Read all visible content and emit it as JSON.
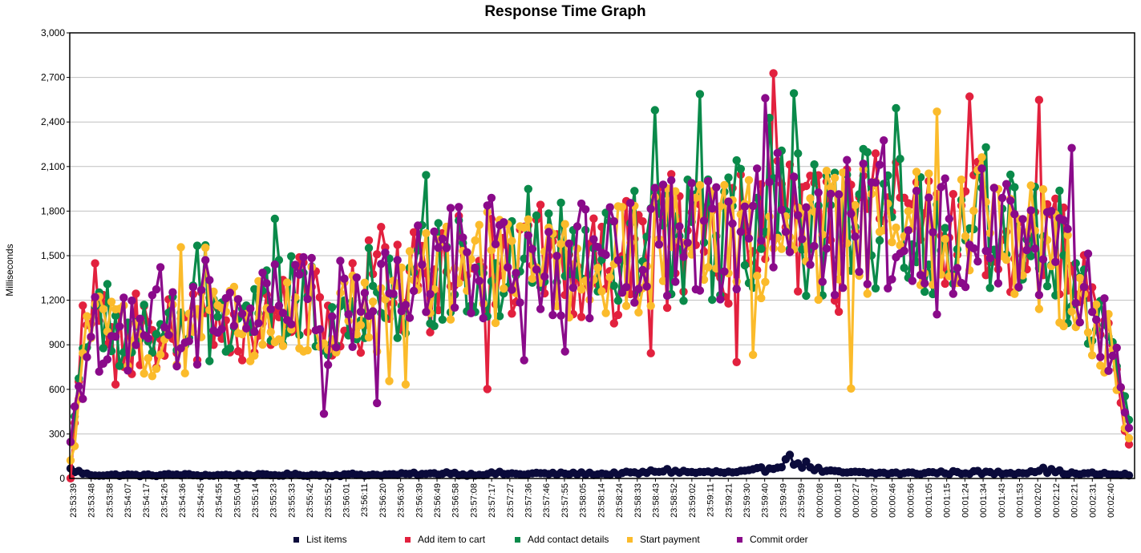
{
  "chart_data": {
    "type": "line",
    "title": "Response Time Graph",
    "xlabel": "",
    "ylabel": "Milliseconds",
    "ylim": [
      0,
      3000
    ],
    "yticks": [
      0,
      300,
      600,
      900,
      1200,
      1500,
      1800,
      2100,
      2400,
      2700,
      3000
    ],
    "ytick_labels": [
      "0",
      "300",
      "600",
      "900",
      "1,200",
      "1,500",
      "1,800",
      "2,100",
      "2,400",
      "2,700",
      "3,000"
    ],
    "xtick_labels": [
      "23:53:39",
      "23:53:48",
      "23:53:58",
      "23:54:07",
      "23:54:17",
      "23:54:26",
      "23:54:36",
      "23:54:45",
      "23:54:55",
      "23:55:04",
      "23:55:14",
      "23:55:23",
      "23:55:33",
      "23:55:42",
      "23:55:52",
      "23:56:01",
      "23:56:11",
      "23:56:20",
      "23:56:30",
      "23:56:39",
      "23:56:49",
      "23:56:58",
      "23:57:08",
      "23:57:17",
      "23:57:27",
      "23:57:36",
      "23:57:46",
      "23:57:55",
      "23:58:05",
      "23:58:14",
      "23:58:24",
      "23:58:33",
      "23:58:43",
      "23:58:52",
      "23:59:02",
      "23:59:11",
      "23:59:21",
      "23:59:30",
      "23:59:40",
      "23:59:49",
      "23:59:59",
      "00:00:08",
      "00:00:18",
      "00:00:27",
      "00:00:37",
      "00:00:46",
      "00:00:56",
      "00:01:05",
      "00:01:15",
      "00:01:24",
      "00:01:34",
      "00:01:43",
      "00:01:53",
      "00:02:02",
      "00:02:12",
      "00:02:21",
      "00:02:31",
      "00:02:40"
    ],
    "grid": true,
    "legend_position": "bottom",
    "series": [
      {
        "name": "List items",
        "color": "#0b0b3b",
        "values": [
          60,
          25,
          22,
          24,
          21,
          23,
          26,
          22,
          21,
          24,
          23,
          22,
          25,
          24,
          22,
          23,
          27,
          24,
          26,
          30,
          28,
          40,
          25,
          30,
          35,
          28,
          34,
          30,
          33,
          32,
          30,
          35,
          38,
          55,
          45,
          40,
          42,
          38,
          48,
          70,
          130,
          90,
          45,
          40,
          38,
          36,
          35,
          34,
          40,
          38,
          42,
          38,
          36,
          40,
          60,
          45,
          30,
          32,
          28,
          25
        ]
      },
      {
        "name": "Add item to cart",
        "color": "#e2213e",
        "values": [
          50,
          1220,
          1000,
          960,
          980,
          1000,
          990,
          1010,
          1030,
          1050,
          1080,
          1120,
          1150,
          1170,
          1100,
          1120,
          1160,
          1200,
          1230,
          1280,
          1320,
          1380,
          1400,
          1420,
          1460,
          1500,
          1480,
          1440,
          1420,
          1400,
          1430,
          1480,
          1520,
          1580,
          1640,
          1620,
          1610,
          1630,
          1650,
          1700,
          1690,
          1660,
          1640,
          1650,
          1700,
          1720,
          1680,
          1660,
          1640,
          1650,
          1700,
          1720,
          1680,
          1650,
          1600,
          1500,
          1300,
          1100,
          800,
          300
        ]
      },
      {
        "name": "Add contact details",
        "color": "#0a8a4a",
        "values": [
          250,
          1050,
          990,
          970,
          990,
          1010,
          1000,
          1020,
          1050,
          1070,
          1100,
          1140,
          1170,
          1190,
          1120,
          1150,
          1190,
          1230,
          1270,
          1310,
          1350,
          1420,
          1440,
          1460,
          1500,
          1540,
          1520,
          1480,
          1460,
          1440,
          1470,
          1520,
          1560,
          1620,
          1680,
          1660,
          1650,
          1680,
          1700,
          1740,
          1730,
          1700,
          1690,
          1700,
          1740,
          1760,
          1720,
          1700,
          1690,
          1700,
          1750,
          1770,
          1730,
          1700,
          1650,
          1550,
          1350,
          1150,
          850,
          350
        ]
      },
      {
        "name": "Start payment",
        "color": "#fbbb2b",
        "values": [
          80,
          1000,
          940,
          920,
          940,
          960,
          950,
          970,
          1000,
          1020,
          1050,
          1090,
          1120,
          1140,
          1080,
          1100,
          1140,
          1180,
          1210,
          1260,
          1300,
          1360,
          1380,
          1400,
          1440,
          1480,
          1460,
          1420,
          1400,
          1380,
          1410,
          1460,
          1500,
          1560,
          1620,
          1600,
          1590,
          1610,
          1630,
          1680,
          1670,
          1640,
          1620,
          1630,
          1680,
          1700,
          1660,
          1640,
          1620,
          1630,
          1680,
          1700,
          1660,
          1630,
          1580,
          1480,
          1280,
          1080,
          780,
          250
        ]
      },
      {
        "name": "Commit order",
        "color": "#8a0a8a",
        "values": [
          290,
          950,
          980,
          960,
          990,
          1020,
          1010,
          1030,
          1060,
          1080,
          1110,
          1150,
          1180,
          1200,
          1130,
          1160,
          1200,
          1240,
          1280,
          1320,
          1360,
          1430,
          1450,
          1470,
          1510,
          1550,
          1530,
          1490,
          1470,
          1450,
          1480,
          1530,
          1570,
          1630,
          1690,
          1670,
          1660,
          1690,
          1710,
          1750,
          1740,
          1710,
          1700,
          1710,
          1750,
          1770,
          1730,
          1710,
          1700,
          1710,
          1760,
          1780,
          1740,
          1710,
          1660,
          1560,
          1360,
          1160,
          860,
          360
        ]
      }
    ]
  }
}
